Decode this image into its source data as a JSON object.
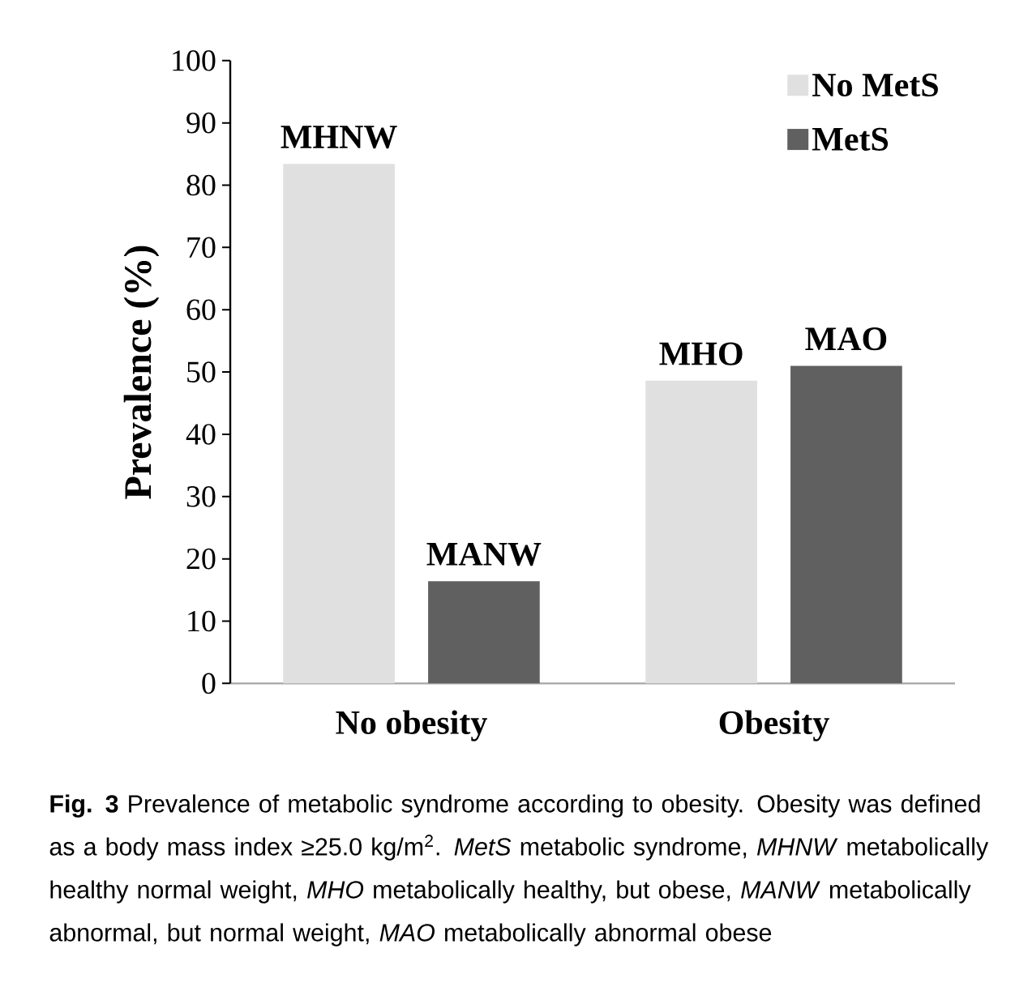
{
  "chart_data": {
    "type": "bar",
    "ylabel": "Prevalence  (%)",
    "categories": [
      "No obesity",
      "Obesity"
    ],
    "series": [
      {
        "name": "No MetS",
        "color": "#e0e0e0",
        "values": [
          83.4,
          48.6
        ],
        "value_labels": [
          "MHNW",
          "MHO"
        ]
      },
      {
        "name": "MetS",
        "color": "#606060",
        "values": [
          16.4,
          51.0
        ],
        "value_labels": [
          "MANW",
          "MAO"
        ]
      }
    ],
    "ylim": [
      0,
      100
    ],
    "yticks": [
      0,
      10,
      20,
      30,
      40,
      50,
      60,
      70,
      80,
      90,
      100
    ],
    "legend": "top right",
    "annotations": [
      "**Fig. 3** Prevalence of metabolic syndrome according to obesity. Obesity was defined as a body mass index ≥25.0 kg/m$^{2}$. *MetS* metabolic syndrome, *MHNW* metabolically healthy normal weight, *MHO* metabolically healthy, but obese, *MANW* metabolically abnormal, but normal weight, *MAO* metabolically abnormal obese"
    ]
  }
}
